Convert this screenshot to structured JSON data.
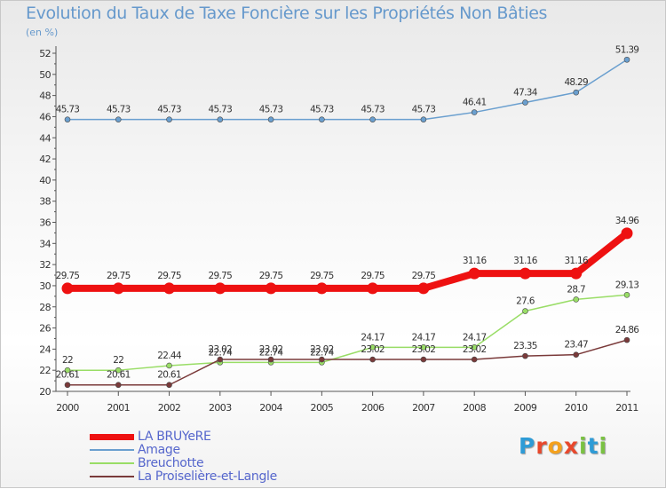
{
  "header": {
    "title": "Evolution du Taux de Taxe Foncière sur les Propriétés Non Bâties",
    "subtitle": "(en %)"
  },
  "brand": {
    "logo_text": "Proxiti",
    "colors": [
      "#e8482c",
      "#f4a11d",
      "#2e9bd6",
      "#7ac143"
    ]
  },
  "chart_data": {
    "type": "line",
    "title": "Evolution du Taux de Taxe Foncière sur les Propriétés Non Bâties",
    "ylabel": "(en %)",
    "xlabel": "",
    "categories": [
      "2000",
      "2001",
      "2002",
      "2003",
      "2004",
      "2005",
      "2006",
      "2007",
      "2008",
      "2009",
      "2010",
      "2011"
    ],
    "ylim": [
      20,
      52
    ],
    "yticks": [
      20,
      22,
      24,
      26,
      28,
      30,
      32,
      34,
      36,
      38,
      40,
      42,
      44,
      46,
      48,
      50,
      52
    ],
    "grid": false,
    "legend_position": "bottom-left",
    "series": [
      {
        "name": "LA BRUYeRE",
        "color": "#ee1111",
        "values": [
          29.75,
          29.75,
          29.75,
          29.75,
          29.75,
          29.75,
          29.75,
          29.75,
          31.16,
          31.16,
          31.16,
          34.96
        ],
        "labels": [
          "29.75",
          "29.75",
          "29.75",
          "29.75",
          "29.75",
          "29.75",
          "29.75",
          "29.75",
          "31.16",
          "31.16",
          "31.16",
          "34.96"
        ]
      },
      {
        "name": "Amage",
        "color": "#6a9fcf",
        "values": [
          45.73,
          45.73,
          45.73,
          45.73,
          45.73,
          45.73,
          45.73,
          45.73,
          46.41,
          47.34,
          48.29,
          51.39
        ],
        "labels": [
          "45.73",
          "45.73",
          "45.73",
          "45.73",
          "45.73",
          "45.73",
          "45.73",
          "45.73",
          "46.41",
          "47.34",
          "48.29",
          "51.39"
        ]
      },
      {
        "name": "Breuchotte",
        "color": "#99dd66",
        "values": [
          22,
          22,
          22.44,
          22.74,
          22.74,
          22.74,
          24.17,
          24.17,
          24.17,
          27.6,
          28.7,
          29.13
        ],
        "labels": [
          "22",
          "22",
          "22.44",
          "22.74",
          "22.74",
          "22.74",
          "24.17",
          "24.17",
          "24.17",
          "27.6",
          "28.7",
          "29.13"
        ]
      },
      {
        "name": "La Proiselière-et-Langle",
        "color": "#7a3a3a",
        "values": [
          20.61,
          20.61,
          20.61,
          23.02,
          23.02,
          23.02,
          23.02,
          23.02,
          23.02,
          23.35,
          23.47,
          24.86
        ],
        "labels": [
          "20.61",
          "20.61",
          "20.61",
          "23.02",
          "23.02",
          "23.02",
          "23.02",
          "23.02",
          "23.02",
          "23.35",
          "23.47",
          "24.86"
        ]
      }
    ]
  }
}
